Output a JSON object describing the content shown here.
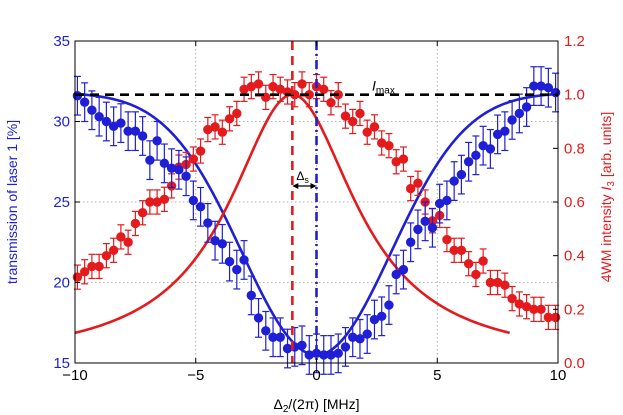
{
  "chart_data": {
    "type": "scatter",
    "xlim": [
      -10,
      10
    ],
    "ylim_left": [
      15,
      35
    ],
    "ylim_right": [
      0.0,
      1.2
    ],
    "grid": true,
    "x_ticks": [
      -10,
      -5,
      0,
      5,
      10
    ],
    "x_tick_labels": [
      "−10",
      "−5",
      "0",
      "5",
      "10"
    ],
    "left_ticks": [
      15,
      20,
      25,
      30,
      35
    ],
    "left_tick_labels": [
      "15",
      "20",
      "25",
      "30",
      "35"
    ],
    "right_ticks": [
      0.0,
      0.2,
      0.4,
      0.6,
      0.8,
      1.0,
      1.2
    ],
    "right_tick_labels": [
      "0.0",
      "0.2",
      "0.4",
      "0.6",
      "0.8",
      "1.0",
      "1.2"
    ],
    "xlabel_main": "Δ",
    "xlabel_sub": "2",
    "xlabel_rest": "/(2π) [MHz]",
    "ylabel_left": "transmission of laser 1 [%]",
    "ylabel_right_text": "4WM intensity ",
    "ylabel_right_sym": "I",
    "ylabel_right_sub": "3",
    "ylabel_right_units": " [arb. units]",
    "imax_label_sym": "I",
    "imax_label_sub": "max",
    "imax_level": 1.0,
    "delta_s_label_sym": "Δ",
    "delta_s_label_sub": "s",
    "red_dashed_x": -1.0,
    "blue_dashdot_x": 0.0,
    "colors": {
      "blue": "#1f1fd6",
      "red": "#e41a1c",
      "black": "#000000",
      "grid": "#999999"
    },
    "series": [
      {
        "name": "transmission data",
        "axis": "left",
        "color": "#1f1fd6",
        "x": [
          -9.9,
          -9.6,
          -9.3,
          -9.0,
          -8.7,
          -8.4,
          -8.1,
          -7.8,
          -7.5,
          -7.2,
          -6.9,
          -6.6,
          -6.3,
          -6.0,
          -5.7,
          -5.4,
          -5.1,
          -4.8,
          -4.5,
          -4.2,
          -3.9,
          -3.6,
          -3.3,
          -3.0,
          -2.7,
          -2.4,
          -2.1,
          -1.8,
          -1.5,
          -1.2,
          -0.9,
          -0.6,
          -0.3,
          0.0,
          0.3,
          0.6,
          0.9,
          1.2,
          1.5,
          1.8,
          2.1,
          2.4,
          2.7,
          3.0,
          3.3,
          3.6,
          3.9,
          4.2,
          4.5,
          4.8,
          5.1,
          5.4,
          5.7,
          6.0,
          6.3,
          6.6,
          6.9,
          7.2,
          7.5,
          7.8,
          8.1,
          8.4,
          8.7,
          9.0,
          9.3,
          9.6,
          9.9
        ],
        "y": [
          31.6,
          31.2,
          30.7,
          30.3,
          30.0,
          29.7,
          29.9,
          29.4,
          29.4,
          29.1,
          27.6,
          28.8,
          27.4,
          27.1,
          27.0,
          26.6,
          25.1,
          24.7,
          23.7,
          22.6,
          22.4,
          21.3,
          20.8,
          21.4,
          19.2,
          17.8,
          17.0,
          16.6,
          16.6,
          15.9,
          16.0,
          16.1,
          15.5,
          15.6,
          15.5,
          15.5,
          15.6,
          16.0,
          16.6,
          16.5,
          16.8,
          17.7,
          17.9,
          18.6,
          20.5,
          20.8,
          22.5,
          23.3,
          23.8,
          23.4,
          24.9,
          25.1,
          26.3,
          26.7,
          27.5,
          27.9,
          28.5,
          28.3,
          29.2,
          29.4,
          30.1,
          30.5,
          30.9,
          32.2,
          32.2,
          32.1,
          31.8
        ],
        "err": 1.2
      },
      {
        "name": "4WM data",
        "axis": "right",
        "color": "#e41a1c",
        "x": [
          -9.9,
          -9.6,
          -9.3,
          -9.0,
          -8.7,
          -8.4,
          -8.1,
          -7.8,
          -7.5,
          -7.2,
          -6.9,
          -6.6,
          -6.3,
          -6.0,
          -5.7,
          -5.4,
          -5.1,
          -4.8,
          -4.5,
          -4.2,
          -3.9,
          -3.6,
          -3.3,
          -3.0,
          -2.7,
          -2.4,
          -2.1,
          -1.8,
          -1.5,
          -1.2,
          -0.9,
          -0.6,
          -0.3,
          0.0,
          0.3,
          0.6,
          0.9,
          1.2,
          1.5,
          1.8,
          2.1,
          2.4,
          2.7,
          3.0,
          3.3,
          3.6,
          3.9,
          4.2,
          4.5,
          4.8,
          5.1,
          5.4,
          5.7,
          6.0,
          6.3,
          6.6,
          6.9,
          7.2,
          7.5,
          7.8,
          8.1,
          8.4,
          8.7,
          9.0,
          9.3,
          9.6,
          9.9
        ],
        "y": [
          0.32,
          0.34,
          0.36,
          0.36,
          0.4,
          0.42,
          0.47,
          0.45,
          0.52,
          0.56,
          0.6,
          0.6,
          0.61,
          0.66,
          0.73,
          0.74,
          0.76,
          0.79,
          0.87,
          0.88,
          0.86,
          0.91,
          0.93,
          1.02,
          1.03,
          1.04,
          0.99,
          1.03,
          1.02,
          1.01,
          1.0,
          1.04,
          1.0,
          1.03,
          1.02,
          0.97,
          1.0,
          0.92,
          0.9,
          0.93,
          0.86,
          0.88,
          0.82,
          0.81,
          0.75,
          0.76,
          0.65,
          0.67,
          0.6,
          0.53,
          0.55,
          0.46,
          0.42,
          0.42,
          0.37,
          0.33,
          0.38,
          0.3,
          0.3,
          0.29,
          0.24,
          0.22,
          0.21,
          0.2,
          0.2,
          0.17,
          0.17
        ],
        "err": 0.045
      },
      {
        "name": "transmission fit",
        "axis": "left",
        "color": "#1f1fd6",
        "fit": {
          "baseline": 31.8,
          "depth": 16.3,
          "center": 0.0,
          "width": 3.1,
          "x_from": -10,
          "x_to": 10
        }
      },
      {
        "name": "4WM fit",
        "axis": "right",
        "color": "#e41a1c",
        "fit": {
          "amplitude": 1.0,
          "center": -1.0,
          "half_width": 3.2,
          "x_from": -10,
          "x_to": 8.0
        }
      }
    ]
  }
}
